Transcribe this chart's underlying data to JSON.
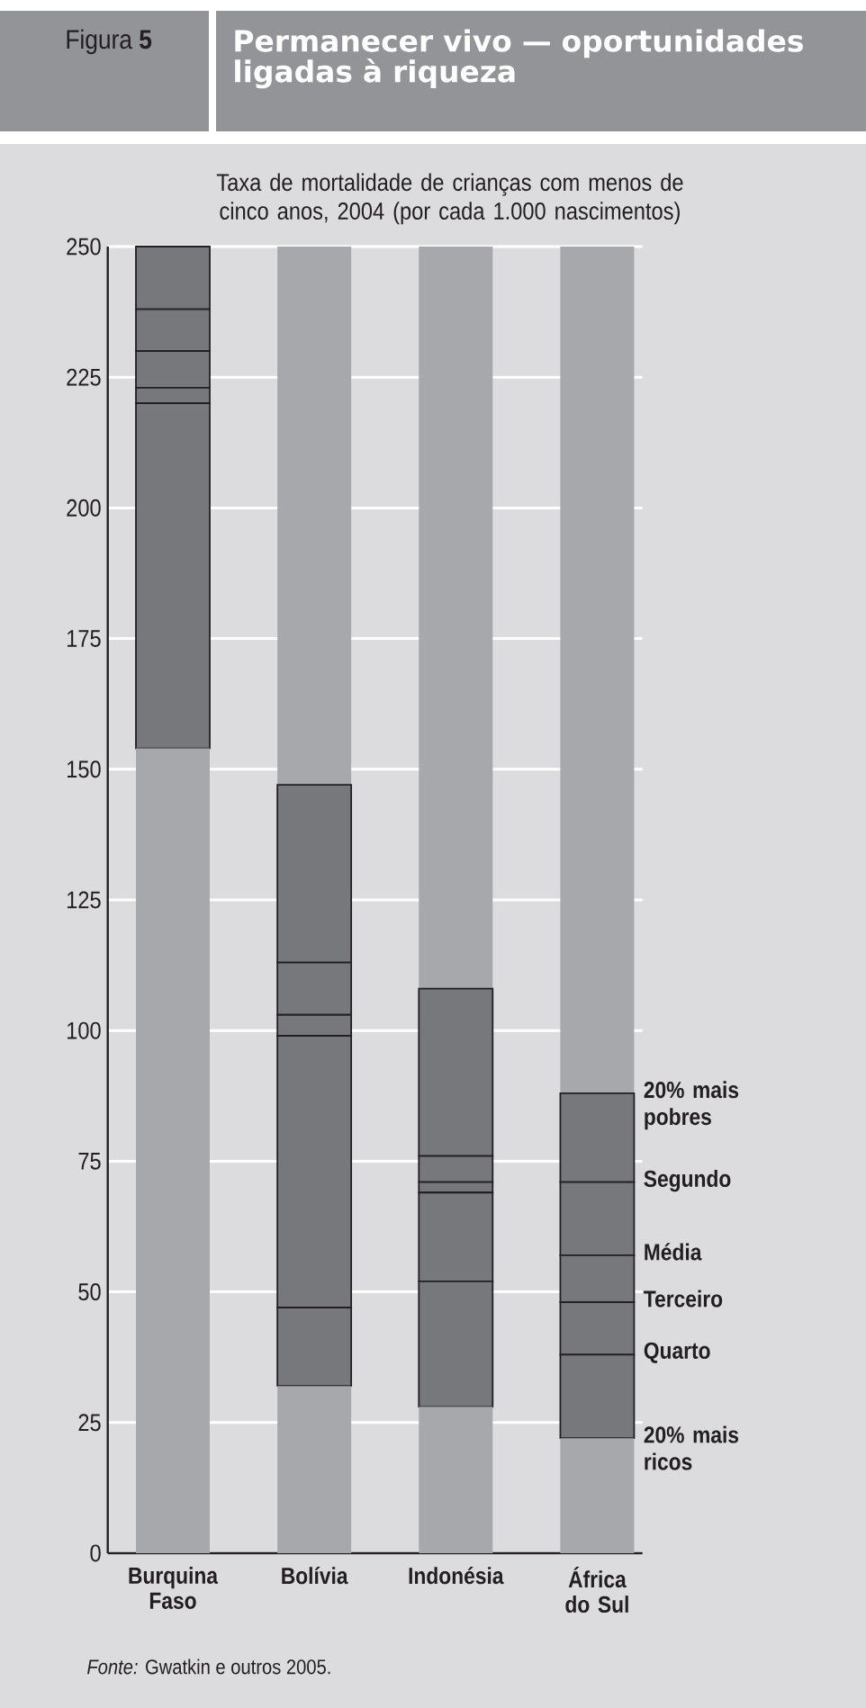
{
  "chart_data": {
    "type": "bar",
    "stacked": true,
    "title": "Permanecer vivo — oportunidades ligadas à riqueza",
    "subtitle": "Taxa de mortalidade de crianças com menos de cinco anos, 2004 (por cada 1.000 nascimentos)",
    "annotations": [
      "Figura **5**",
      "*Fonte:* Gwatkin e outros 2005.",
      {
        "text": "20% mais pobres",
        "x": "África do Sul",
        "y": 88
      },
      {
        "text": "Segundo",
        "x": "África do Sul",
        "y": 71
      },
      {
        "text": "Média",
        "x": "África do Sul",
        "y": 57
      },
      {
        "text": "Terceiro",
        "x": "África do Sul",
        "y": 48
      },
      {
        "text": "Quarto",
        "x": "África do Sul",
        "y": 38
      },
      {
        "text": "20% mais ricos",
        "x": "África do Sul",
        "y": 22
      }
    ],
    "categories": [
      "Burquina Faso",
      "Bolívia",
      "Indonésia",
      "África do Sul"
    ],
    "ylim": [
      0,
      250
    ],
    "yticks": [
      0,
      25,
      50,
      75,
      100,
      125,
      150,
      175,
      200,
      225,
      250
    ],
    "grid": "y",
    "series": [
      {
        "color": "#a7a8ab",
        "values": [
          154,
          32,
          28,
          22
        ]
      },
      {
        "color": "#77787b",
        "values": [
          66,
          15,
          24,
          16
        ]
      },
      {
        "color": "#77787b",
        "values": [
          3,
          52,
          17,
          10
        ]
      },
      {
        "color": "#77787b",
        "values": [
          7,
          4,
          2,
          9
        ]
      },
      {
        "color": "#77787b",
        "values": [
          8,
          10,
          5,
          14
        ]
      },
      {
        "color": "#77787b",
        "values": [
          12,
          34,
          32,
          17
        ]
      },
      {
        "color": "#a7a8ab",
        "values": [
          0,
          103,
          142,
          162
        ]
      }
    ]
  }
}
